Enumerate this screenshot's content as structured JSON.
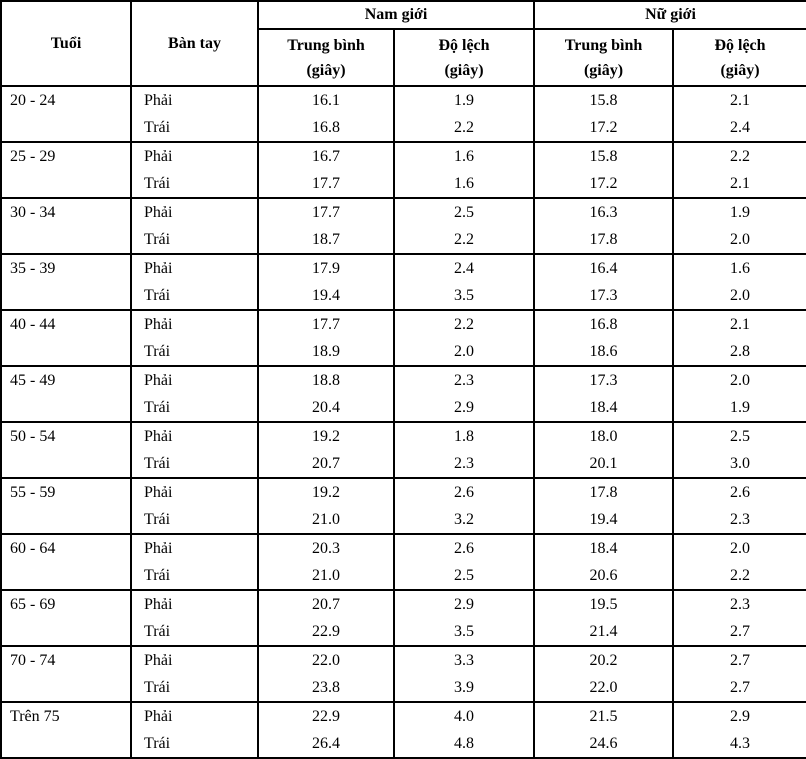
{
  "page": {
    "background_color": "#ffffff",
    "rule_color": "#000000",
    "text_color": "#000000"
  },
  "table": {
    "header": {
      "age": "Tuổi",
      "hand": "Bàn tay",
      "male_group": "Nam giới",
      "female_group": "Nữ giới",
      "mean_label": "Trung bình",
      "sd_label": "Độ lệch",
      "unit_label": "(giây)"
    },
    "groups": [
      {
        "age": "20 - 24",
        "rows": [
          {
            "hand": "Phải",
            "male_mean": "16.1",
            "male_sd": "1.9",
            "female_mean": "15.8",
            "female_sd": "2.1"
          },
          {
            "hand": "Trái",
            "male_mean": "16.8",
            "male_sd": "2.2",
            "female_mean": "17.2",
            "female_sd": "2.4"
          }
        ]
      },
      {
        "age": "25 - 29",
        "rows": [
          {
            "hand": "Phải",
            "male_mean": "16.7",
            "male_sd": "1.6",
            "female_mean": "15.8",
            "female_sd": "2.2"
          },
          {
            "hand": "Trái",
            "male_mean": "17.7",
            "male_sd": "1.6",
            "female_mean": "17.2",
            "female_sd": "2.1"
          }
        ]
      },
      {
        "age": "30 - 34",
        "rows": [
          {
            "hand": "Phải",
            "male_mean": "17.7",
            "male_sd": "2.5",
            "female_mean": "16.3",
            "female_sd": "1.9"
          },
          {
            "hand": "Trái",
            "male_mean": "18.7",
            "male_sd": "2.2",
            "female_mean": "17.8",
            "female_sd": "2.0"
          }
        ]
      },
      {
        "age": "35 - 39",
        "rows": [
          {
            "hand": "Phải",
            "male_mean": "17.9",
            "male_sd": "2.4",
            "female_mean": "16.4",
            "female_sd": "1.6"
          },
          {
            "hand": "Trái",
            "male_mean": "19.4",
            "male_sd": "3.5",
            "female_mean": "17.3",
            "female_sd": "2.0"
          }
        ]
      },
      {
        "age": "40 - 44",
        "rows": [
          {
            "hand": "Phải",
            "male_mean": "17.7",
            "male_sd": "2.2",
            "female_mean": "16.8",
            "female_sd": "2.1"
          },
          {
            "hand": "Trái",
            "male_mean": "18.9",
            "male_sd": "2.0",
            "female_mean": "18.6",
            "female_sd": "2.8"
          }
        ]
      },
      {
        "age": "45 - 49",
        "rows": [
          {
            "hand": "Phải",
            "male_mean": "18.8",
            "male_sd": "2.3",
            "female_mean": "17.3",
            "female_sd": "2.0"
          },
          {
            "hand": "Trái",
            "male_mean": "20.4",
            "male_sd": "2.9",
            "female_mean": "18.4",
            "female_sd": "1.9"
          }
        ]
      },
      {
        "age": "50 - 54",
        "rows": [
          {
            "hand": "Phải",
            "male_mean": "19.2",
            "male_sd": "1.8",
            "female_mean": "18.0",
            "female_sd": "2.5"
          },
          {
            "hand": "Trái",
            "male_mean": "20.7",
            "male_sd": "2.3",
            "female_mean": "20.1",
            "female_sd": "3.0"
          }
        ]
      },
      {
        "age": "55 - 59",
        "rows": [
          {
            "hand": "Phải",
            "male_mean": "19.2",
            "male_sd": "2.6",
            "female_mean": "17.8",
            "female_sd": "2.6"
          },
          {
            "hand": "Trái",
            "male_mean": "21.0",
            "male_sd": "3.2",
            "female_mean": "19.4",
            "female_sd": "2.3"
          }
        ]
      },
      {
        "age": "60 - 64",
        "rows": [
          {
            "hand": "Phải",
            "male_mean": "20.3",
            "male_sd": "2.6",
            "female_mean": "18.4",
            "female_sd": "2.0"
          },
          {
            "hand": "Trái",
            "male_mean": "21.0",
            "male_sd": "2.5",
            "female_mean": "20.6",
            "female_sd": "2.2"
          }
        ]
      },
      {
        "age": "65 - 69",
        "rows": [
          {
            "hand": "Phải",
            "male_mean": "20.7",
            "male_sd": "2.9",
            "female_mean": "19.5",
            "female_sd": "2.3"
          },
          {
            "hand": "Trái",
            "male_mean": "22.9",
            "male_sd": "3.5",
            "female_mean": "21.4",
            "female_sd": "2.7"
          }
        ]
      },
      {
        "age": "70 - 74",
        "rows": [
          {
            "hand": "Phải",
            "male_mean": "22.0",
            "male_sd": "3.3",
            "female_mean": "20.2",
            "female_sd": "2.7"
          },
          {
            "hand": "Trái",
            "male_mean": "23.8",
            "male_sd": "3.9",
            "female_mean": "22.0",
            "female_sd": "2.7"
          }
        ]
      },
      {
        "age": "Trên 75",
        "rows": [
          {
            "hand": "Phải",
            "male_mean": "22.9",
            "male_sd": "4.0",
            "female_mean": "21.5",
            "female_sd": "2.9"
          },
          {
            "hand": "Trái",
            "male_mean": "26.4",
            "male_sd": "4.8",
            "female_mean": "24.6",
            "female_sd": "4.3"
          }
        ]
      }
    ]
  }
}
